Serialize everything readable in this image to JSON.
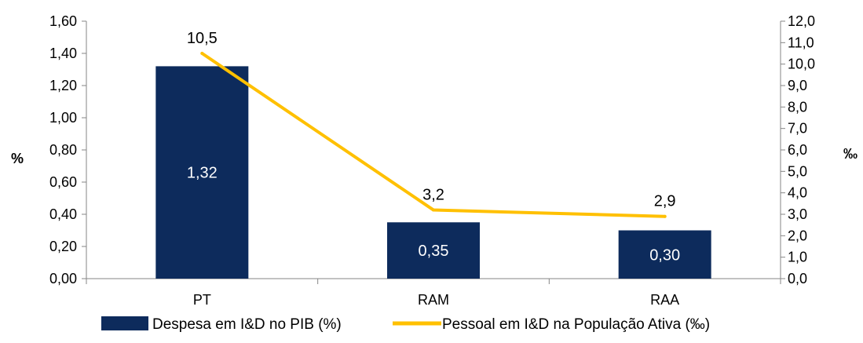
{
  "chart_data": {
    "type": "bar",
    "categories": [
      "PT",
      "RAM",
      "RAA"
    ],
    "series": [
      {
        "name": "Despesa em I&D no PIB (%)",
        "type": "bar",
        "axis": "left",
        "values": [
          1.32,
          0.35,
          0.3
        ],
        "labels": [
          "1,32",
          "0,35",
          "0,30"
        ],
        "color": "#0d2b5c"
      },
      {
        "name": "Pessoal em I&D na População Ativa (‰)",
        "type": "line",
        "axis": "right",
        "values": [
          10.5,
          3.2,
          2.9
        ],
        "labels": [
          "10,5",
          "3,2",
          "2,9"
        ],
        "color": "#ffc000"
      }
    ],
    "ylabel_left": "%",
    "ylabel_right": "‰",
    "ylim_left": [
      0,
      1.6
    ],
    "ylim_right": [
      0,
      12
    ],
    "yticks_left": [
      "0,00",
      "0,20",
      "0,40",
      "0,60",
      "0,80",
      "1,00",
      "1,20",
      "1,40",
      "1,60"
    ],
    "yticks_right": [
      "0,0",
      "1,0",
      "2,0",
      "3,0",
      "4,0",
      "5,0",
      "6,0",
      "7,0",
      "8,0",
      "9,0",
      "10,0",
      "11,0",
      "12,0"
    ],
    "grid": false,
    "legend_position": "bottom"
  }
}
